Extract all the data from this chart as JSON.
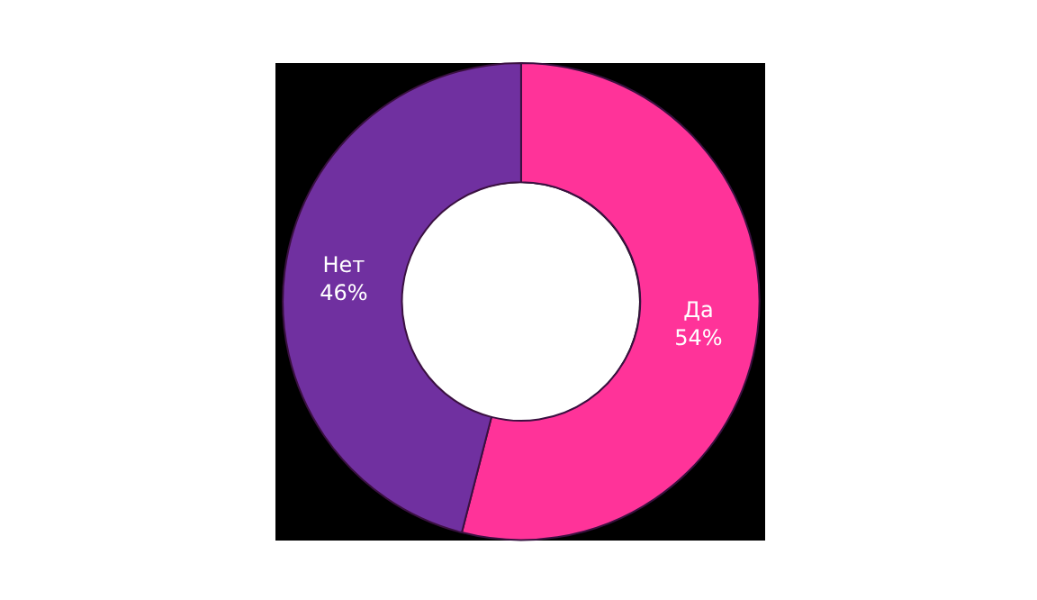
{
  "chart_data": {
    "type": "donut",
    "categories": [
      "Да",
      "Нет"
    ],
    "values": [
      54,
      46
    ],
    "value_labels": [
      "54%",
      "46%"
    ],
    "colors": [
      "#ff3399",
      "#7030a0"
    ],
    "legend": false
  }
}
